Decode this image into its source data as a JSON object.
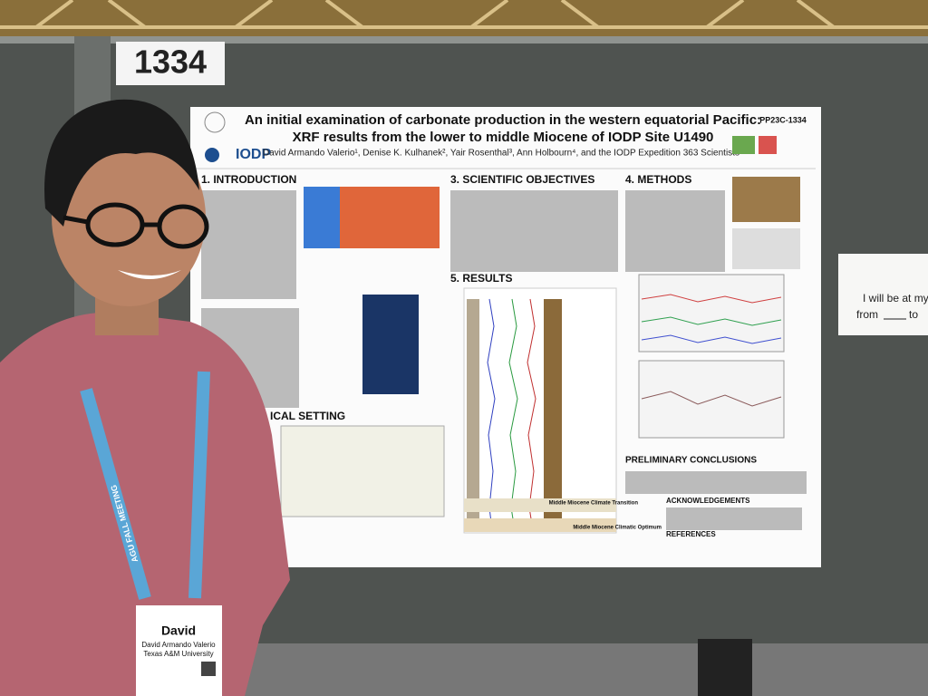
{
  "booth_number": "1334",
  "poster": {
    "code": "PP23C-1334",
    "title_lines": [
      "An initial examination of carbonate production in the western equatorial Pacific:",
      "XRF results from the lower to middle Miocene of IODP Site U1490"
    ],
    "authors": "David Armando Valerio¹, Denise K. Kulhanek², Yair Rosenthal³, Ann Holbourn⁴, and the IODP Expedition 363 Scientists⁵",
    "logo": "IODP",
    "sections": [
      "1. INTRODUCTION",
      "3. SCIENTIFIC OBJECTIVES",
      "4. METHODS",
      "5. RESULTS",
      "ICAL SETTING",
      "PRELIMINARY CONCLUSIONS",
      "ACKNOWLEDGEMENTS",
      "REFERENCES"
    ],
    "labels": [
      "Middle Miocene Climate Transition",
      "Middle Miocene Climatic Optimum"
    ]
  },
  "lanyard": "AGU FALL MEETING",
  "badge": {
    "name": "David",
    "full_name": "David Armando Valerio",
    "affiliation": "Texas A&M University"
  },
  "note": {
    "line1": "I will be at my p",
    "from": "from",
    "to": "to"
  }
}
